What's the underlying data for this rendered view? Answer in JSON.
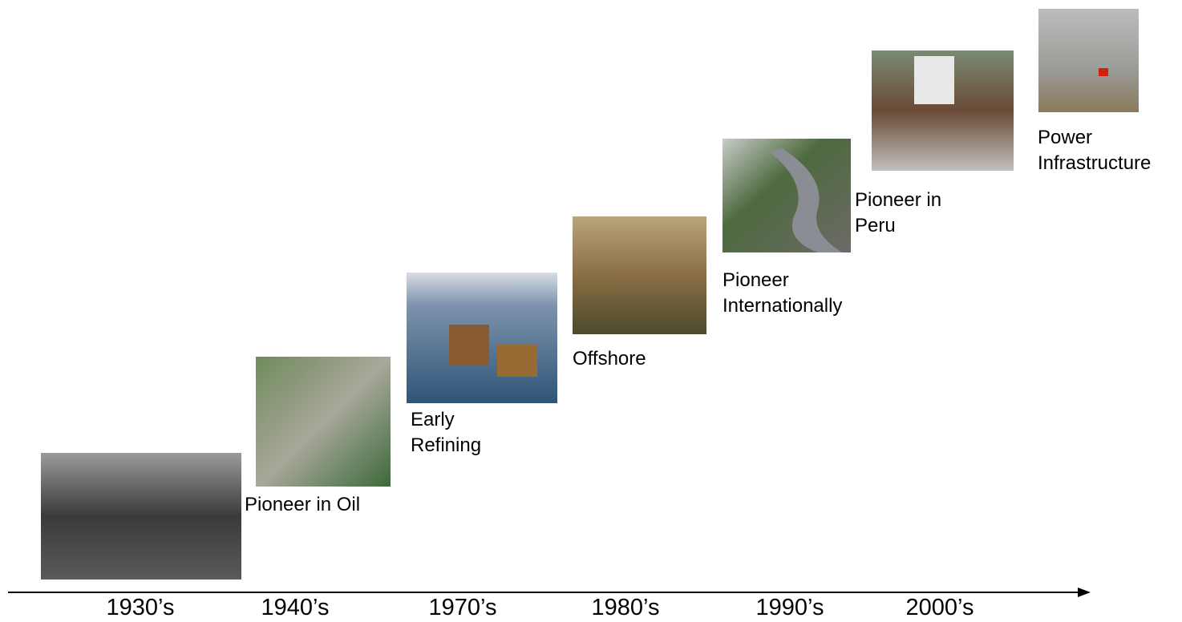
{
  "timeline": {
    "decades": [
      "1930’s",
      "1940’s",
      "1970’s",
      "1980’s",
      "1990’s",
      "2000’s"
    ],
    "milestones": [
      "Pioneer in Oil",
      "Early Refining",
      "Offshore",
      "Pioneer Internationally",
      "Pioneer in Peru",
      "Power Infrastructure"
    ]
  }
}
